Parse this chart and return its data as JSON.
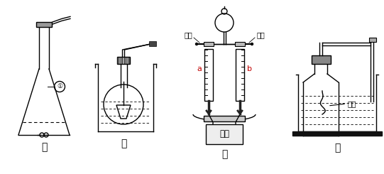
{
  "bg_color": "#ffffff",
  "line_color": "#000000",
  "label_jia": "甲",
  "label_yi": "乙",
  "label_bing": "丙",
  "label_ding": "丁",
  "label_huosai_left": "活塞",
  "label_huosai_right": "活塞",
  "label_a": "a",
  "label_b": "b",
  "label_dianyuan": "电源",
  "label_honglin": "红磷",
  "label_circle1": "①",
  "gray_stopper": "#999999",
  "gray_dark": "#444444",
  "gray_light": "#dddddd",
  "red_label": "#c00000"
}
